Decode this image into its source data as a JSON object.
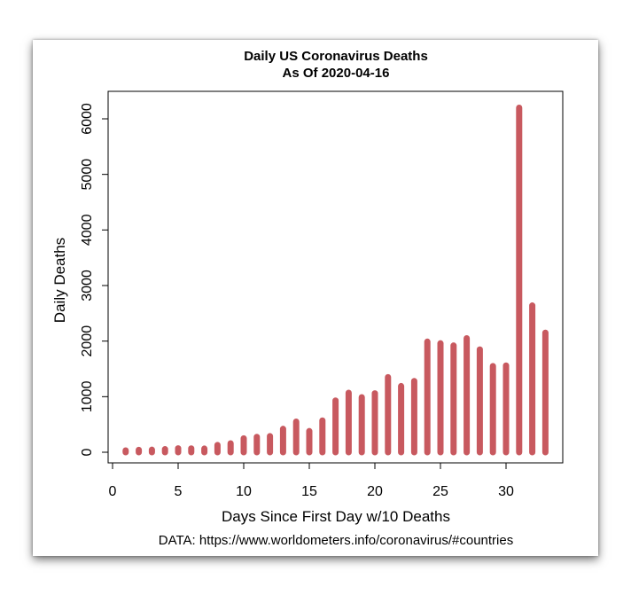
{
  "chart_data": {
    "type": "bar",
    "title": "Daily US Coronavirus Deaths",
    "subtitle": "As Of 2020-04-16",
    "xlabel": "Days Since First Day w/10 Deaths",
    "ylabel": "Daily Deaths",
    "note": "DATA: https://www.worldometers.info/coronavirus/#countries",
    "x": [
      1,
      2,
      3,
      4,
      5,
      6,
      7,
      8,
      9,
      10,
      11,
      12,
      13,
      14,
      15,
      16,
      17,
      18,
      19,
      20,
      21,
      22,
      23,
      24,
      25,
      26,
      27,
      28,
      29,
      30,
      31,
      32,
      33
    ],
    "values": [
      32,
      42,
      45,
      55,
      70,
      68,
      65,
      130,
      160,
      250,
      275,
      290,
      420,
      550,
      380,
      570,
      930,
      1070,
      990,
      1060,
      1350,
      1190,
      1280,
      1990,
      1960,
      1920,
      2050,
      1850,
      1550,
      1560,
      6200,
      2640,
      2150
    ],
    "xlim": [
      0,
      34
    ],
    "ylim": [
      -200,
      6400
    ],
    "xticks": [
      0,
      5,
      10,
      15,
      20,
      25,
      30
    ],
    "yticks": [
      0,
      1000,
      2000,
      3000,
      4000,
      5000,
      6000
    ],
    "bar_color": "#c8595f",
    "grid": false,
    "legend": "none"
  }
}
